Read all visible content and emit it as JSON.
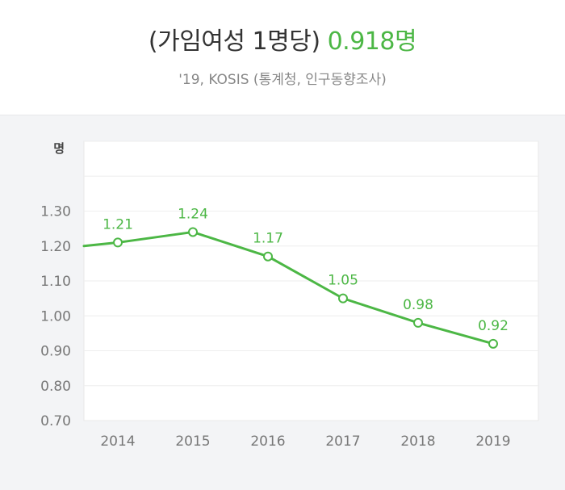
{
  "header": {
    "title_prefix": "(가임여성 1명당)",
    "title_value": "0.918명",
    "subtitle": "'19, KOSIS (통계청, 인구동향조사)"
  },
  "colors": {
    "accent": "#4cb745",
    "panel_bg": "#f3f4f6",
    "plot_bg": "#ffffff",
    "grid": "#eeeeee",
    "axis_text": "#777777"
  },
  "chart_data": {
    "type": "line",
    "title": "(가임여성 1명당) 0.918명",
    "subtitle": "'19, KOSIS (통계청, 인구동향조사)",
    "ylabel": "명",
    "xlabel": "",
    "categories": [
      "2014",
      "2015",
      "2016",
      "2017",
      "2018",
      "2019"
    ],
    "series": [
      {
        "values": [
          1.21,
          1.24,
          1.17,
          1.05,
          0.98,
          0.92
        ],
        "color": "#4cb745"
      }
    ],
    "data_labels": [
      "1.21",
      "1.24",
      "1.17",
      "1.05",
      "0.98",
      "0.92"
    ],
    "line_start_value": 1.2,
    "y_ticks": [
      "0.70",
      "0.80",
      "0.90",
      "1.00",
      "1.10",
      "1.20",
      "1.30"
    ],
    "ylim": [
      0.7,
      1.5
    ],
    "grid": true,
    "legend": "none"
  }
}
